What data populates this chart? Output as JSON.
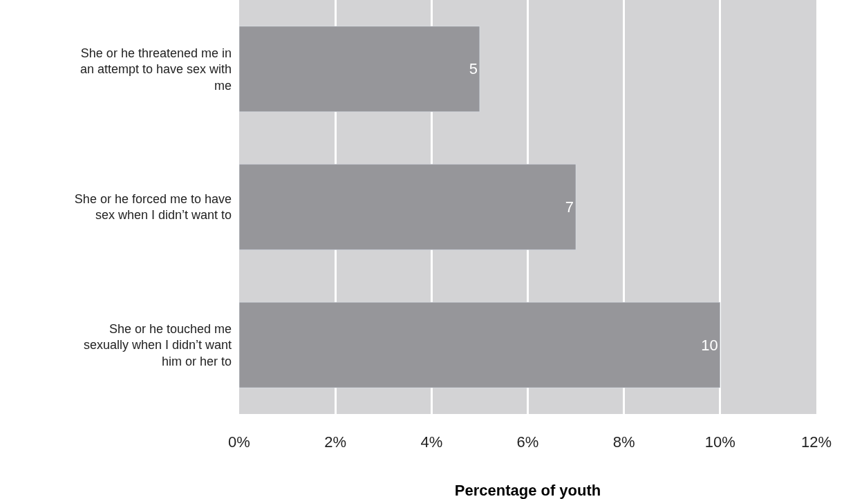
{
  "chart_data": {
    "type": "bar",
    "orientation": "horizontal",
    "xlabel": "Percentage of youth",
    "categories": [
      "She or he threatened me in an attempt to have sex with me",
      "She or he forced me to have sex when I didn’t want to",
      "She or he touched me sexually when I didn’t want him or her to"
    ],
    "values": [
      5,
      7,
      10
    ],
    "color": "#96969a",
    "data_labels": true,
    "xlim": [
      0,
      12
    ],
    "xticks": [
      {
        "value": 0,
        "label": "0%"
      },
      {
        "value": 2,
        "label": "2%"
      },
      {
        "value": 4,
        "label": "4%"
      },
      {
        "value": 6,
        "label": "6%"
      },
      {
        "value": 8,
        "label": "8%"
      },
      {
        "value": 10,
        "label": "10%"
      },
      {
        "value": 12,
        "label": "12%"
      }
    ],
    "grid": "x",
    "legend": false
  }
}
